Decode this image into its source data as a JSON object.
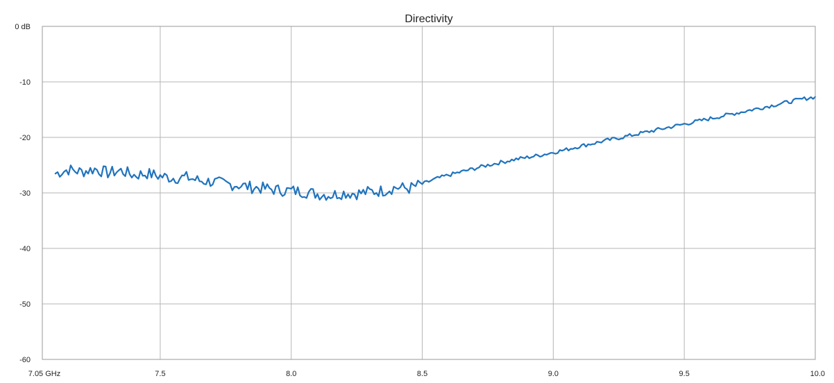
{
  "chart_data": {
    "type": "line",
    "title": "Directivity",
    "xlabel": "",
    "ylabel": "",
    "xlim": [
      7.05,
      10.0
    ],
    "ylim": [
      -60,
      0
    ],
    "x_ticks": [
      {
        "value": 7.05,
        "label": "7.05 GHz"
      },
      {
        "value": 7.5,
        "label": "7.5"
      },
      {
        "value": 8.0,
        "label": "8.0"
      },
      {
        "value": 8.5,
        "label": "8.5"
      },
      {
        "value": 9.0,
        "label": "9.0"
      },
      {
        "value": 9.5,
        "label": "9.5"
      },
      {
        "value": 10.0,
        "label": "10.0"
      }
    ],
    "y_ticks": [
      {
        "value": 0,
        "label": "0 dB"
      },
      {
        "value": -10,
        "label": "-10"
      },
      {
        "value": -20,
        "label": "-20"
      },
      {
        "value": -30,
        "label": "-30"
      },
      {
        "value": -40,
        "label": "-40"
      },
      {
        "value": -50,
        "label": "-50"
      },
      {
        "value": -60,
        "label": "-60"
      }
    ],
    "grid": true,
    "legend": "none",
    "series": [
      {
        "color": "#1f73bd",
        "x": [
          7.1,
          7.15,
          7.2,
          7.25,
          7.3,
          7.35,
          7.4,
          7.45,
          7.5,
          7.55,
          7.6,
          7.65,
          7.7,
          7.75,
          7.8,
          7.85,
          7.9,
          7.95,
          8.0,
          8.05,
          8.1,
          8.15,
          8.2,
          8.25,
          8.3,
          8.35,
          8.4,
          8.45,
          8.5,
          8.55,
          8.6,
          8.65,
          8.7,
          8.75,
          8.8,
          8.85,
          8.9,
          8.95,
          9.0,
          9.05,
          9.1,
          9.15,
          9.2,
          9.25,
          9.3,
          9.35,
          9.4,
          9.45,
          9.5,
          9.55,
          9.6,
          9.65,
          9.7,
          9.75,
          9.8,
          9.85,
          9.9,
          9.95,
          10.0
        ],
        "y": [
          -26.5,
          -25.8,
          -26.2,
          -25.7,
          -26.4,
          -26.0,
          -26.8,
          -26.5,
          -27.0,
          -27.3,
          -27.2,
          -27.8,
          -28.0,
          -28.4,
          -28.6,
          -29.0,
          -29.2,
          -29.5,
          -29.6,
          -29.8,
          -30.2,
          -30.4,
          -30.0,
          -30.1,
          -29.8,
          -29.6,
          -29.0,
          -29.2,
          -28.4,
          -27.5,
          -26.8,
          -26.2,
          -25.6,
          -25.0,
          -24.5,
          -24.0,
          -23.6,
          -23.2,
          -22.7,
          -22.2,
          -21.6,
          -21.1,
          -20.6,
          -20.1,
          -19.6,
          -19.1,
          -18.6,
          -18.1,
          -17.6,
          -17.1,
          -16.6,
          -16.1,
          -15.6,
          -15.1,
          -14.6,
          -14.1,
          -13.6,
          -13.1,
          -12.7
        ]
      }
    ]
  }
}
